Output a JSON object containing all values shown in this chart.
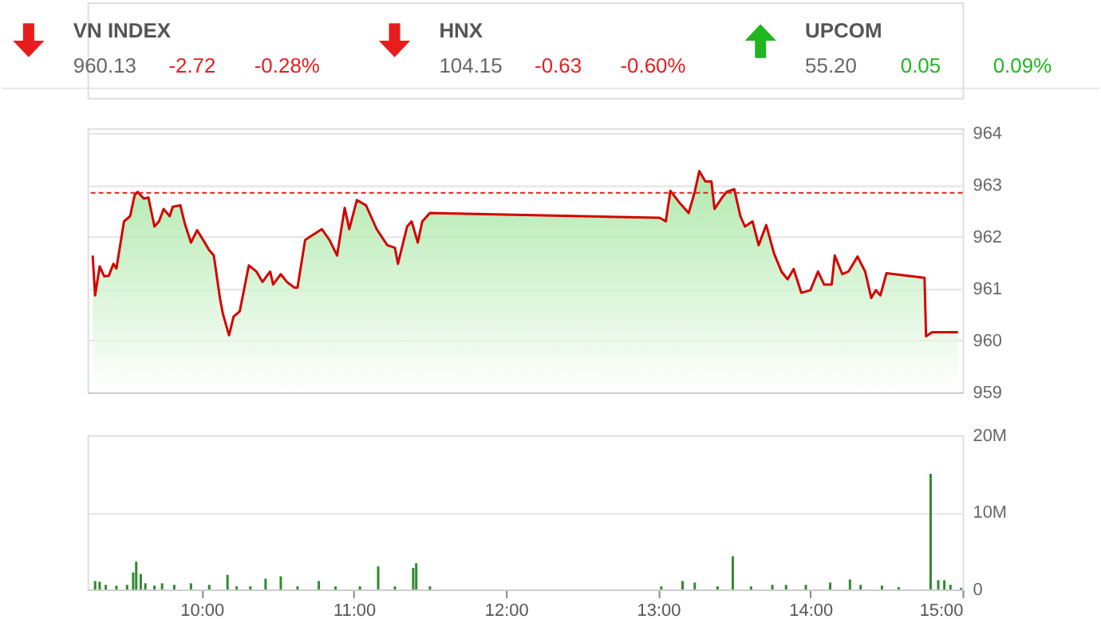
{
  "chart_data": [
    {
      "type": "other",
      "categories": [
        "VN INDEX",
        "HNX",
        "UPCOM"
      ],
      "annotations": [
        "960.13",
        "-2.72",
        "-0.28%",
        "104.15",
        "-0.63",
        "-0.60%",
        "55.20",
        "0.05",
        "0.09%"
      ],
      "colors": [
        "#e81c1c",
        "#e81c1c",
        "#21b521"
      ]
    },
    {
      "type": "area",
      "xlim": [
        9.25,
        15
      ],
      "ylim": [
        959,
        964.1
      ],
      "yticks": [
        959,
        960,
        961,
        962,
        963,
        964
      ],
      "grid": "y",
      "tick_labels": "y",
      "ref_lines": [
        {
          "axis": "y",
          "value": 962.85,
          "color": "#e02020",
          "line_style": "dashed"
        }
      ],
      "series": [
        {
          "color": "#d40000",
          "x": [
            9.284,
            9.3,
            9.33,
            9.36,
            9.39,
            9.42,
            9.44,
            9.49,
            9.53,
            9.56,
            9.58,
            9.62,
            9.65,
            9.69,
            9.72,
            9.75,
            9.79,
            9.81,
            9.86,
            9.89,
            9.93,
            9.97,
            10.01,
            10.05,
            10.08,
            10.12,
            10.14,
            10.18,
            10.21,
            10.25,
            10.31,
            10.36,
            10.4,
            10.45,
            10.47,
            10.52,
            10.56,
            10.61,
            10.63,
            10.68,
            10.71,
            10.79,
            10.84,
            10.89,
            10.94,
            10.97,
            11.02,
            11.08,
            11.15,
            11.22,
            11.27,
            11.29,
            11.35,
            11.38,
            11.42,
            11.45,
            11.5,
            13.01,
            13.05,
            13.08,
            13.14,
            13.2,
            13.24,
            13.27,
            13.31,
            13.35,
            13.37,
            13.42,
            13.45,
            13.5,
            13.54,
            13.57,
            13.62,
            13.66,
            13.71,
            13.76,
            13.81,
            13.85,
            13.89,
            13.94,
            14.0,
            14.05,
            14.09,
            14.14,
            14.16,
            14.21,
            14.25,
            14.31,
            14.36,
            14.4,
            14.43,
            14.46,
            14.5,
            14.75,
            14.76,
            14.8,
            14.97
          ],
          "values": [
            961.64,
            960.87,
            961.43,
            961.24,
            961.25,
            961.48,
            961.39,
            962.3,
            962.4,
            962.81,
            962.87,
            962.74,
            962.76,
            962.2,
            962.3,
            962.54,
            962.4,
            962.58,
            962.61,
            962.25,
            961.89,
            962.13,
            961.94,
            961.74,
            961.64,
            960.82,
            960.51,
            960.1,
            960.46,
            960.56,
            961.45,
            961.33,
            961.13,
            961.33,
            961.08,
            961.28,
            961.13,
            961.02,
            961.02,
            961.94,
            962.0,
            962.15,
            961.94,
            961.64,
            962.56,
            962.15,
            962.71,
            962.61,
            962.15,
            961.84,
            961.79,
            961.48,
            962.2,
            962.3,
            961.89,
            962.3,
            962.46,
            962.37,
            962.3,
            962.89,
            962.66,
            962.46,
            962.87,
            963.27,
            963.07,
            963.07,
            962.54,
            962.76,
            962.87,
            962.92,
            962.4,
            962.2,
            962.3,
            961.84,
            962.23,
            961.69,
            961.33,
            961.18,
            961.38,
            960.92,
            960.97,
            961.33,
            961.08,
            961.08,
            961.64,
            961.28,
            961.33,
            961.62,
            961.33,
            960.82,
            960.97,
            960.87,
            961.3,
            961.21,
            960.08,
            960.16,
            960.16
          ]
        }
      ]
    },
    {
      "type": "bar",
      "xlim": [
        9.25,
        15
      ],
      "xticks": [
        {
          "value": 10,
          "label": "10:00"
        },
        {
          "value": 11,
          "label": "11:00"
        },
        {
          "value": 12,
          "label": "12:00"
        },
        {
          "value": 13,
          "label": "13:00"
        },
        {
          "value": 14,
          "label": "14:00"
        },
        {
          "value": 15,
          "label": "15:00"
        }
      ],
      "ylim": [
        0,
        20
      ],
      "yticks": [
        0,
        {
          "value": 10,
          "label": "10M"
        },
        {
          "value": 20,
          "label": "20M"
        }
      ],
      "grid": "y",
      "series": [
        {
          "color": "#2e8b2e",
          "x": [
            9.3,
            9.33,
            9.37,
            9.44,
            9.51,
            9.55,
            9.57,
            9.6,
            9.63,
            9.69,
            9.74,
            9.82,
            9.93,
            10.05,
            10.17,
            10.23,
            10.32,
            10.42,
            10.52,
            10.63,
            10.77,
            10.88,
            11.04,
            11.16,
            11.27,
            11.39,
            11.41,
            11.5,
            13.02,
            13.16,
            13.24,
            13.39,
            13.49,
            13.61,
            13.75,
            13.84,
            13.97,
            14.13,
            14.26,
            14.33,
            14.47,
            14.58,
            14.79,
            14.84,
            14.88,
            14.92,
            14.99
          ],
          "values": [
            1.1,
            1.0,
            0.6,
            0.5,
            0.6,
            2.2,
            3.6,
            2.0,
            0.8,
            0.5,
            0.8,
            0.6,
            0.8,
            0.6,
            1.9,
            0.4,
            0.4,
            1.4,
            1.7,
            0.4,
            1.1,
            0.4,
            0.4,
            3.0,
            0.4,
            2.8,
            3.4,
            0.4,
            0.4,
            1.1,
            0.9,
            0.4,
            4.3,
            0.4,
            0.6,
            0.6,
            0.6,
            0.9,
            1.3,
            0.6,
            0.5,
            0.3,
            15.0,
            1.2,
            1.2,
            0.6,
            0.2
          ]
        }
      ]
    }
  ]
}
